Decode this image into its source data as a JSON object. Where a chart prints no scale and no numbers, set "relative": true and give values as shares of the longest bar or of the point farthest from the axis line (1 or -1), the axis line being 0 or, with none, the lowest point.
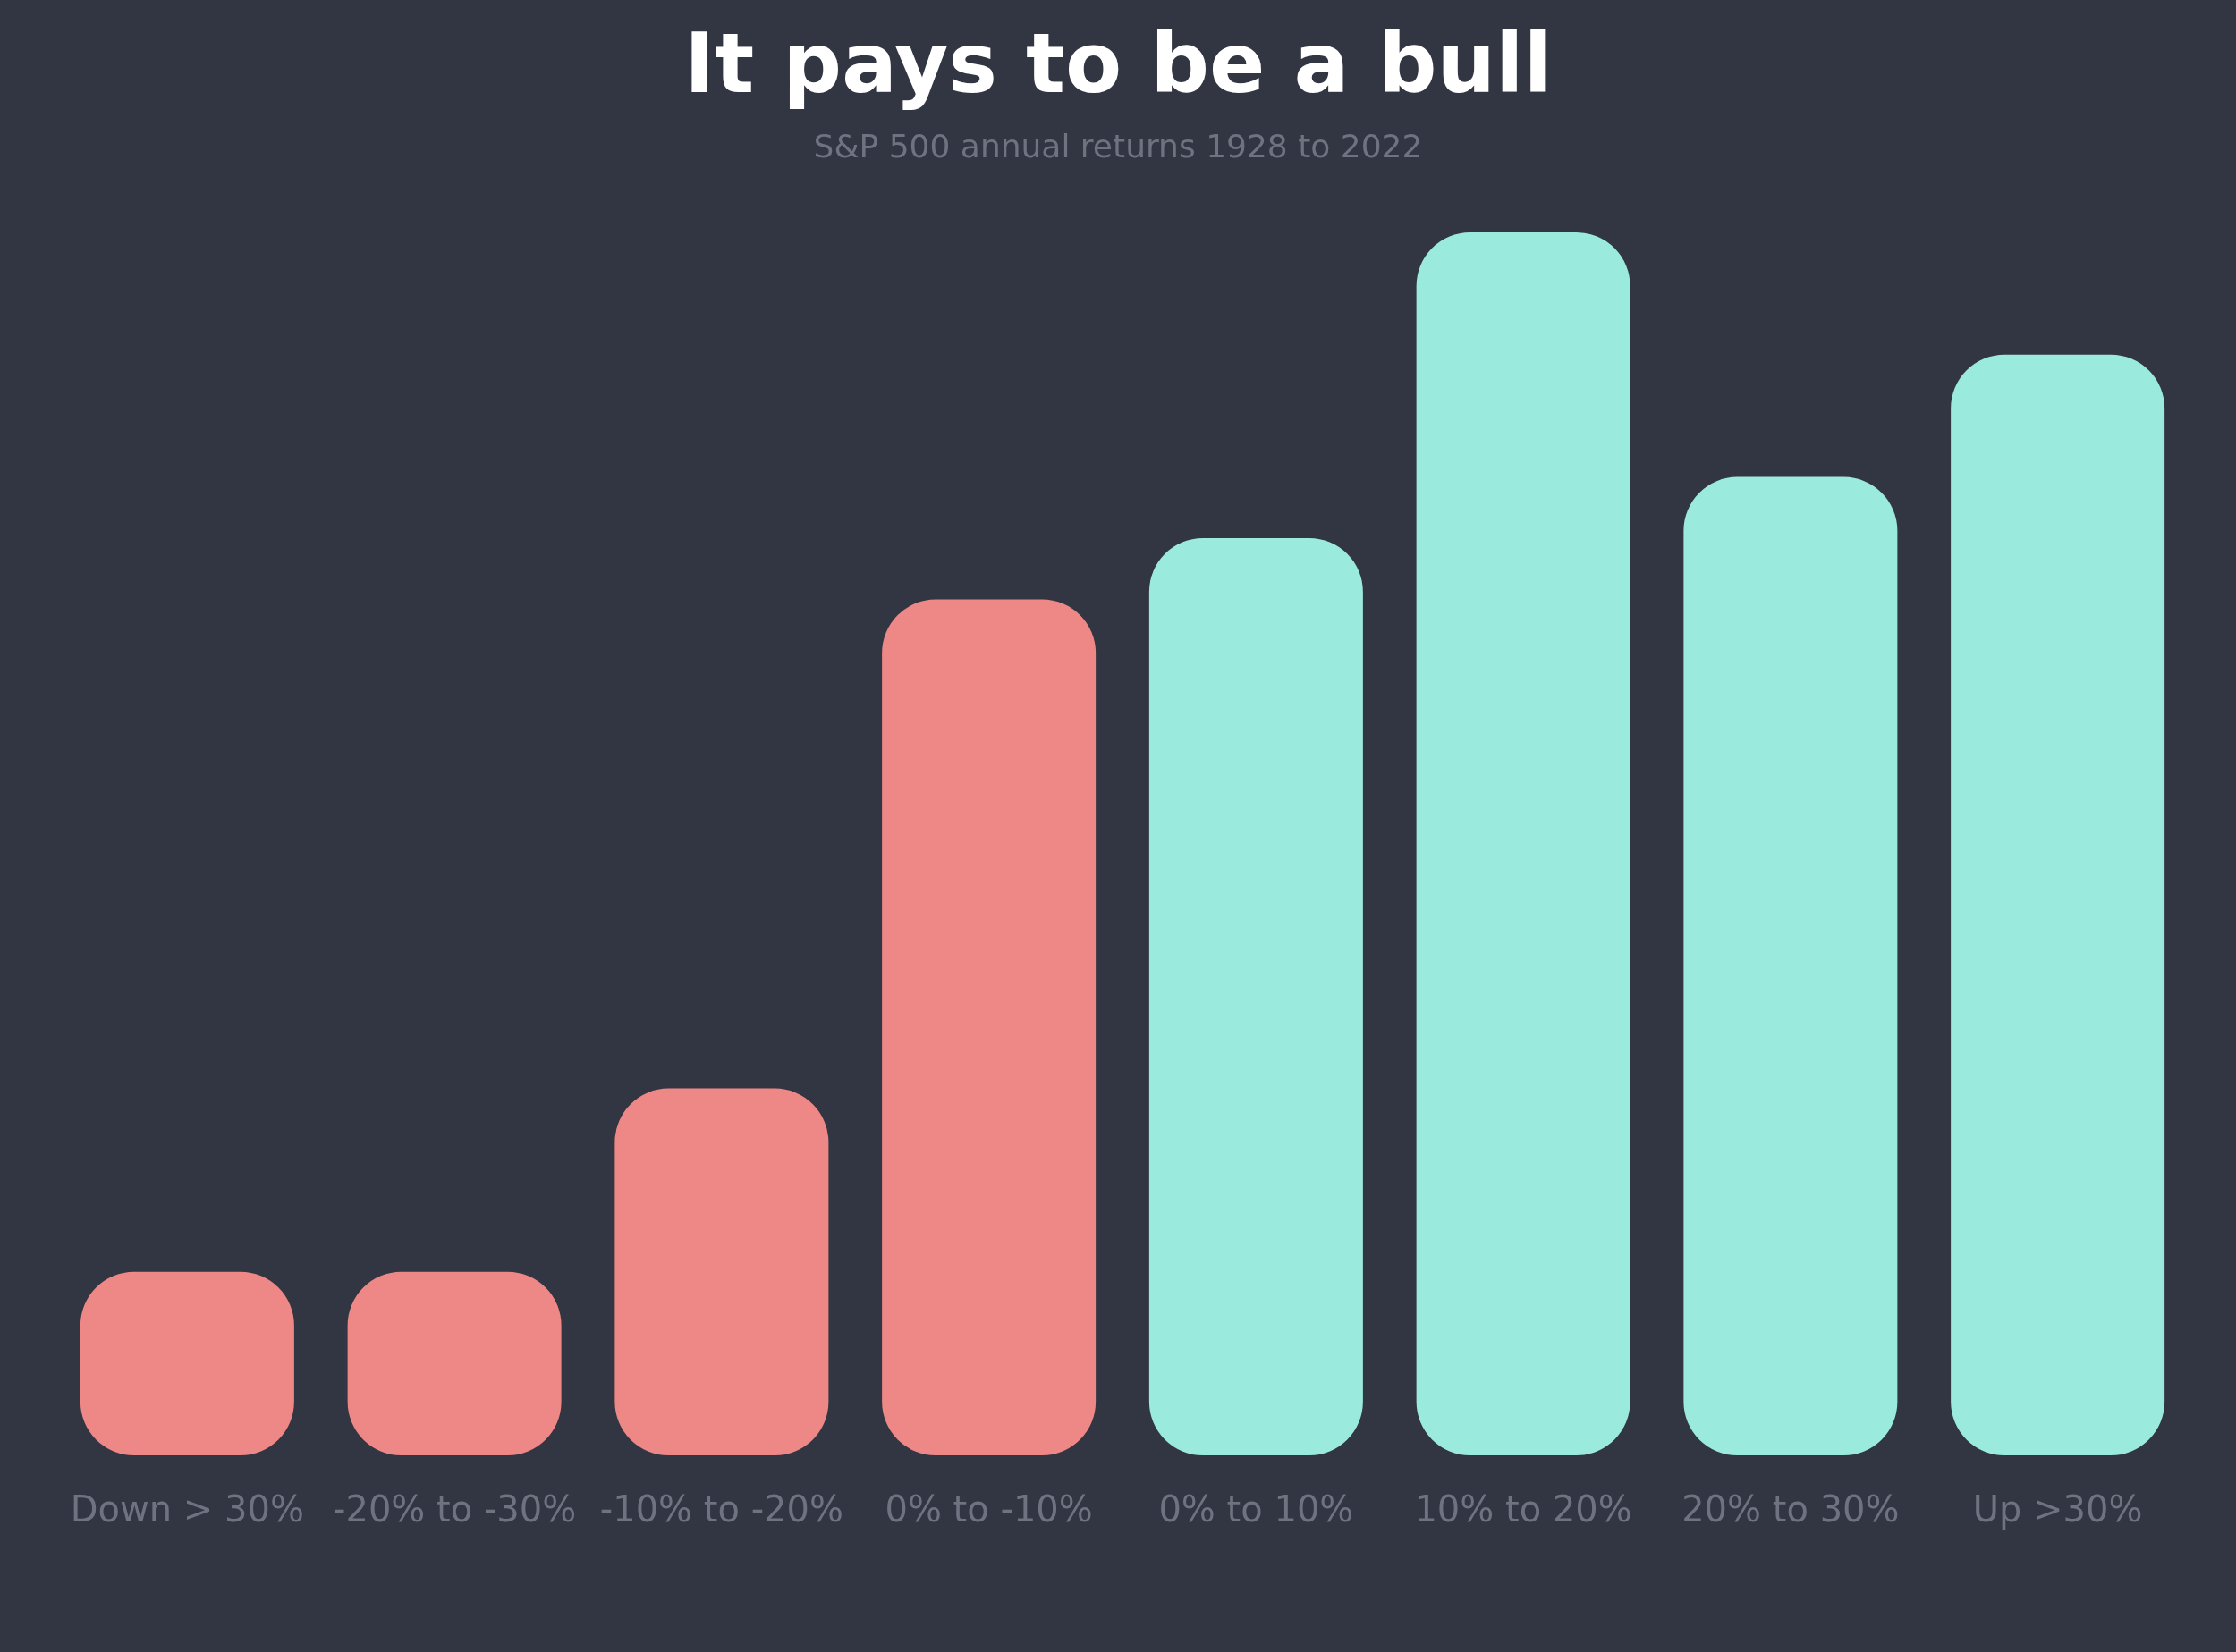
{
  "chart_data": {
    "type": "bar",
    "title": "It pays to be a bull",
    "subtitle": "S&P 500 annual returns 1928 to 2022",
    "categories": [
      "Down > 30%",
      "-20% to -30%",
      "-10% to -20%",
      "0% to -10%",
      "0% to 10%",
      "10% to 20%",
      "20% to 30%",
      "Up >30%"
    ],
    "values": [
      0.15,
      0.15,
      0.3,
      0.7,
      0.75,
      1,
      0.8,
      0.9
    ],
    "colors": [
      "#ed8886",
      "#ed8886",
      "#ed8886",
      "#ed8886",
      "#9aeade",
      "#9aeade",
      "#9aeade",
      "#9aeade"
    ],
    "relative": true
  }
}
